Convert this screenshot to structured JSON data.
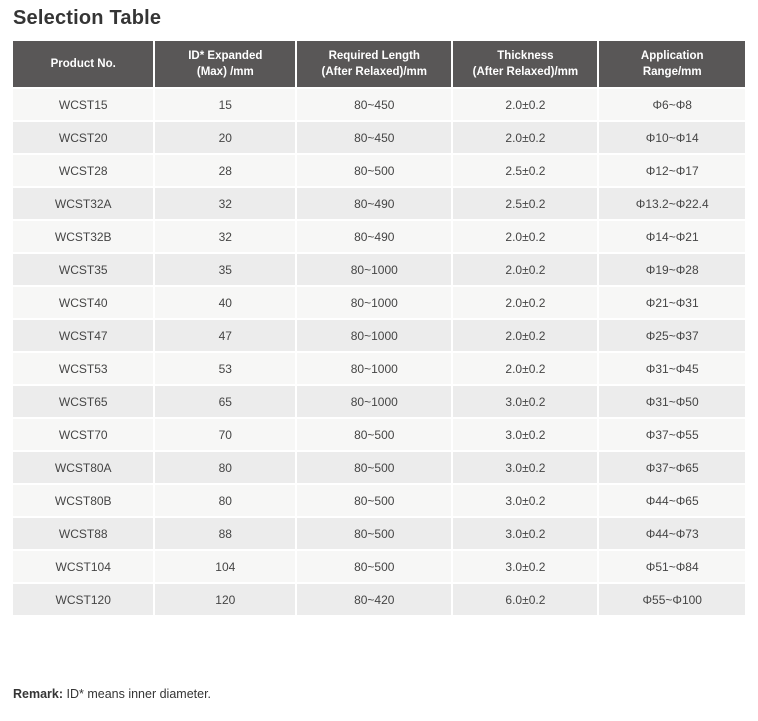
{
  "page": {
    "title": "Selection Table",
    "remark_label": "Remark:",
    "remark_text": " ID* means inner diameter."
  },
  "colors": {
    "header_bg": "#595757",
    "header_text": "#ffffff",
    "row_odd_bg": "#f7f7f6",
    "row_even_bg": "#ececec",
    "body_text": "#454545",
    "title_text": "#353535"
  },
  "table": {
    "columns": [
      {
        "lines": [
          "Product No."
        ]
      },
      {
        "lines": [
          "ID* Expanded",
          "(Max) /mm"
        ]
      },
      {
        "lines": [
          "Required Length",
          "(After Relaxed)/mm"
        ]
      },
      {
        "lines": [
          "Thickness",
          "(After Relaxed)/mm"
        ]
      },
      {
        "lines": [
          "Application",
          "Range/mm"
        ]
      }
    ],
    "rows": [
      [
        "WCST15",
        "15",
        "80~450",
        "2.0±0.2",
        "Φ6~Φ8"
      ],
      [
        "WCST20",
        "20",
        "80~450",
        "2.0±0.2",
        "Φ10~Φ14"
      ],
      [
        "WCST28",
        "28",
        "80~500",
        "2.5±0.2",
        "Φ12~Φ17"
      ],
      [
        "WCST32A",
        "32",
        "80~490",
        "2.5±0.2",
        "Φ13.2~Φ22.4"
      ],
      [
        "WCST32B",
        "32",
        "80~490",
        "2.0±0.2",
        "Φ14~Φ21"
      ],
      [
        "WCST35",
        "35",
        "80~1000",
        "2.0±0.2",
        "Φ19~Φ28"
      ],
      [
        "WCST40",
        "40",
        "80~1000",
        "2.0±0.2",
        "Φ21~Φ31"
      ],
      [
        "WCST47",
        "47",
        "80~1000",
        "2.0±0.2",
        "Φ25~Φ37"
      ],
      [
        "WCST53",
        "53",
        "80~1000",
        "2.0±0.2",
        "Φ31~Φ45"
      ],
      [
        "WCST65",
        "65",
        "80~1000",
        "3.0±0.2",
        "Φ31~Φ50"
      ],
      [
        "WCST70",
        "70",
        "80~500",
        "3.0±0.2",
        "Φ37~Φ55"
      ],
      [
        "WCST80A",
        "80",
        "80~500",
        "3.0±0.2",
        "Φ37~Φ65"
      ],
      [
        "WCST80B",
        "80",
        "80~500",
        "3.0±0.2",
        "Φ44~Φ65"
      ],
      [
        "WCST88",
        "88",
        "80~500",
        "3.0±0.2",
        "Φ44~Φ73"
      ],
      [
        "WCST104",
        "104",
        "80~500",
        "3.0±0.2",
        "Φ51~Φ84"
      ],
      [
        "WCST120",
        "120",
        "80~420",
        "6.0±0.2",
        "Φ55~Φ100"
      ]
    ]
  }
}
